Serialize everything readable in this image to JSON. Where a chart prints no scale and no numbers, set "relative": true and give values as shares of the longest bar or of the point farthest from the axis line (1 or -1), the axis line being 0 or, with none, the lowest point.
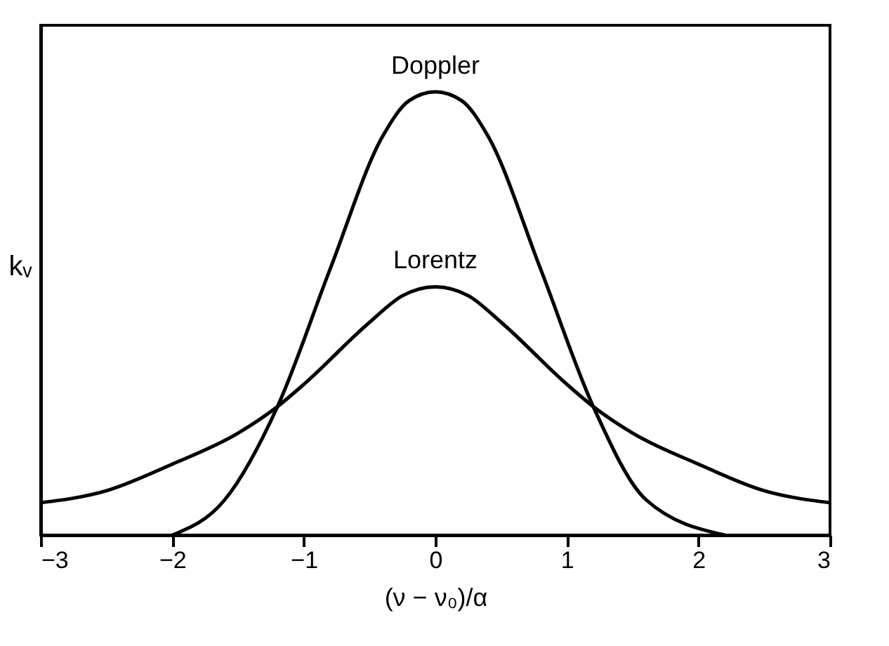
{
  "chart_data": {
    "type": "line",
    "relative": true,
    "xlabel": "(ν − ν₀)/α",
    "ylabel": "kᵥ",
    "xlim": [
      -3,
      3
    ],
    "xticks": [
      {
        "value": -3,
        "label": "−3"
      },
      {
        "value": -2,
        "label": "−2"
      },
      {
        "value": -1,
        "label": "−1"
      },
      0,
      1,
      2,
      3
    ],
    "grid": false,
    "marker": "none",
    "line_style": "solid",
    "series": [
      {
        "color": "#000000",
        "x": [
          -2.0,
          -1.6,
          -1.2,
          -0.8,
          -0.4,
          -0.2,
          0,
          0.2,
          0.4,
          0.8,
          1.2,
          1.6,
          2.2
        ],
        "values": [
          0.0,
          0.08,
          0.29,
          0.6,
          0.9,
          0.98,
          1,
          0.98,
          0.9,
          0.6,
          0.29,
          0.08,
          0.0
        ]
      },
      {
        "color": "#000000",
        "x": [
          -3,
          -2.5,
          -2,
          -1.5,
          -1.2,
          -1,
          -0.5,
          -0.25,
          0,
          0.25,
          0.5,
          1,
          1.2,
          1.5,
          2,
          2.5,
          3
        ],
        "values": [
          0.073,
          0.1,
          0.16,
          0.23,
          0.29,
          0.34,
          0.48,
          0.54,
          0.56,
          0.54,
          0.48,
          0.34,
          0.29,
          0.23,
          0.16,
          0.1,
          0.073
        ]
      }
    ],
    "annotations": [
      {
        "text": "Doppler",
        "x": 0,
        "y": 1
      },
      {
        "text": "Lorentz",
        "x": 0,
        "y": 0.56
      }
    ]
  }
}
